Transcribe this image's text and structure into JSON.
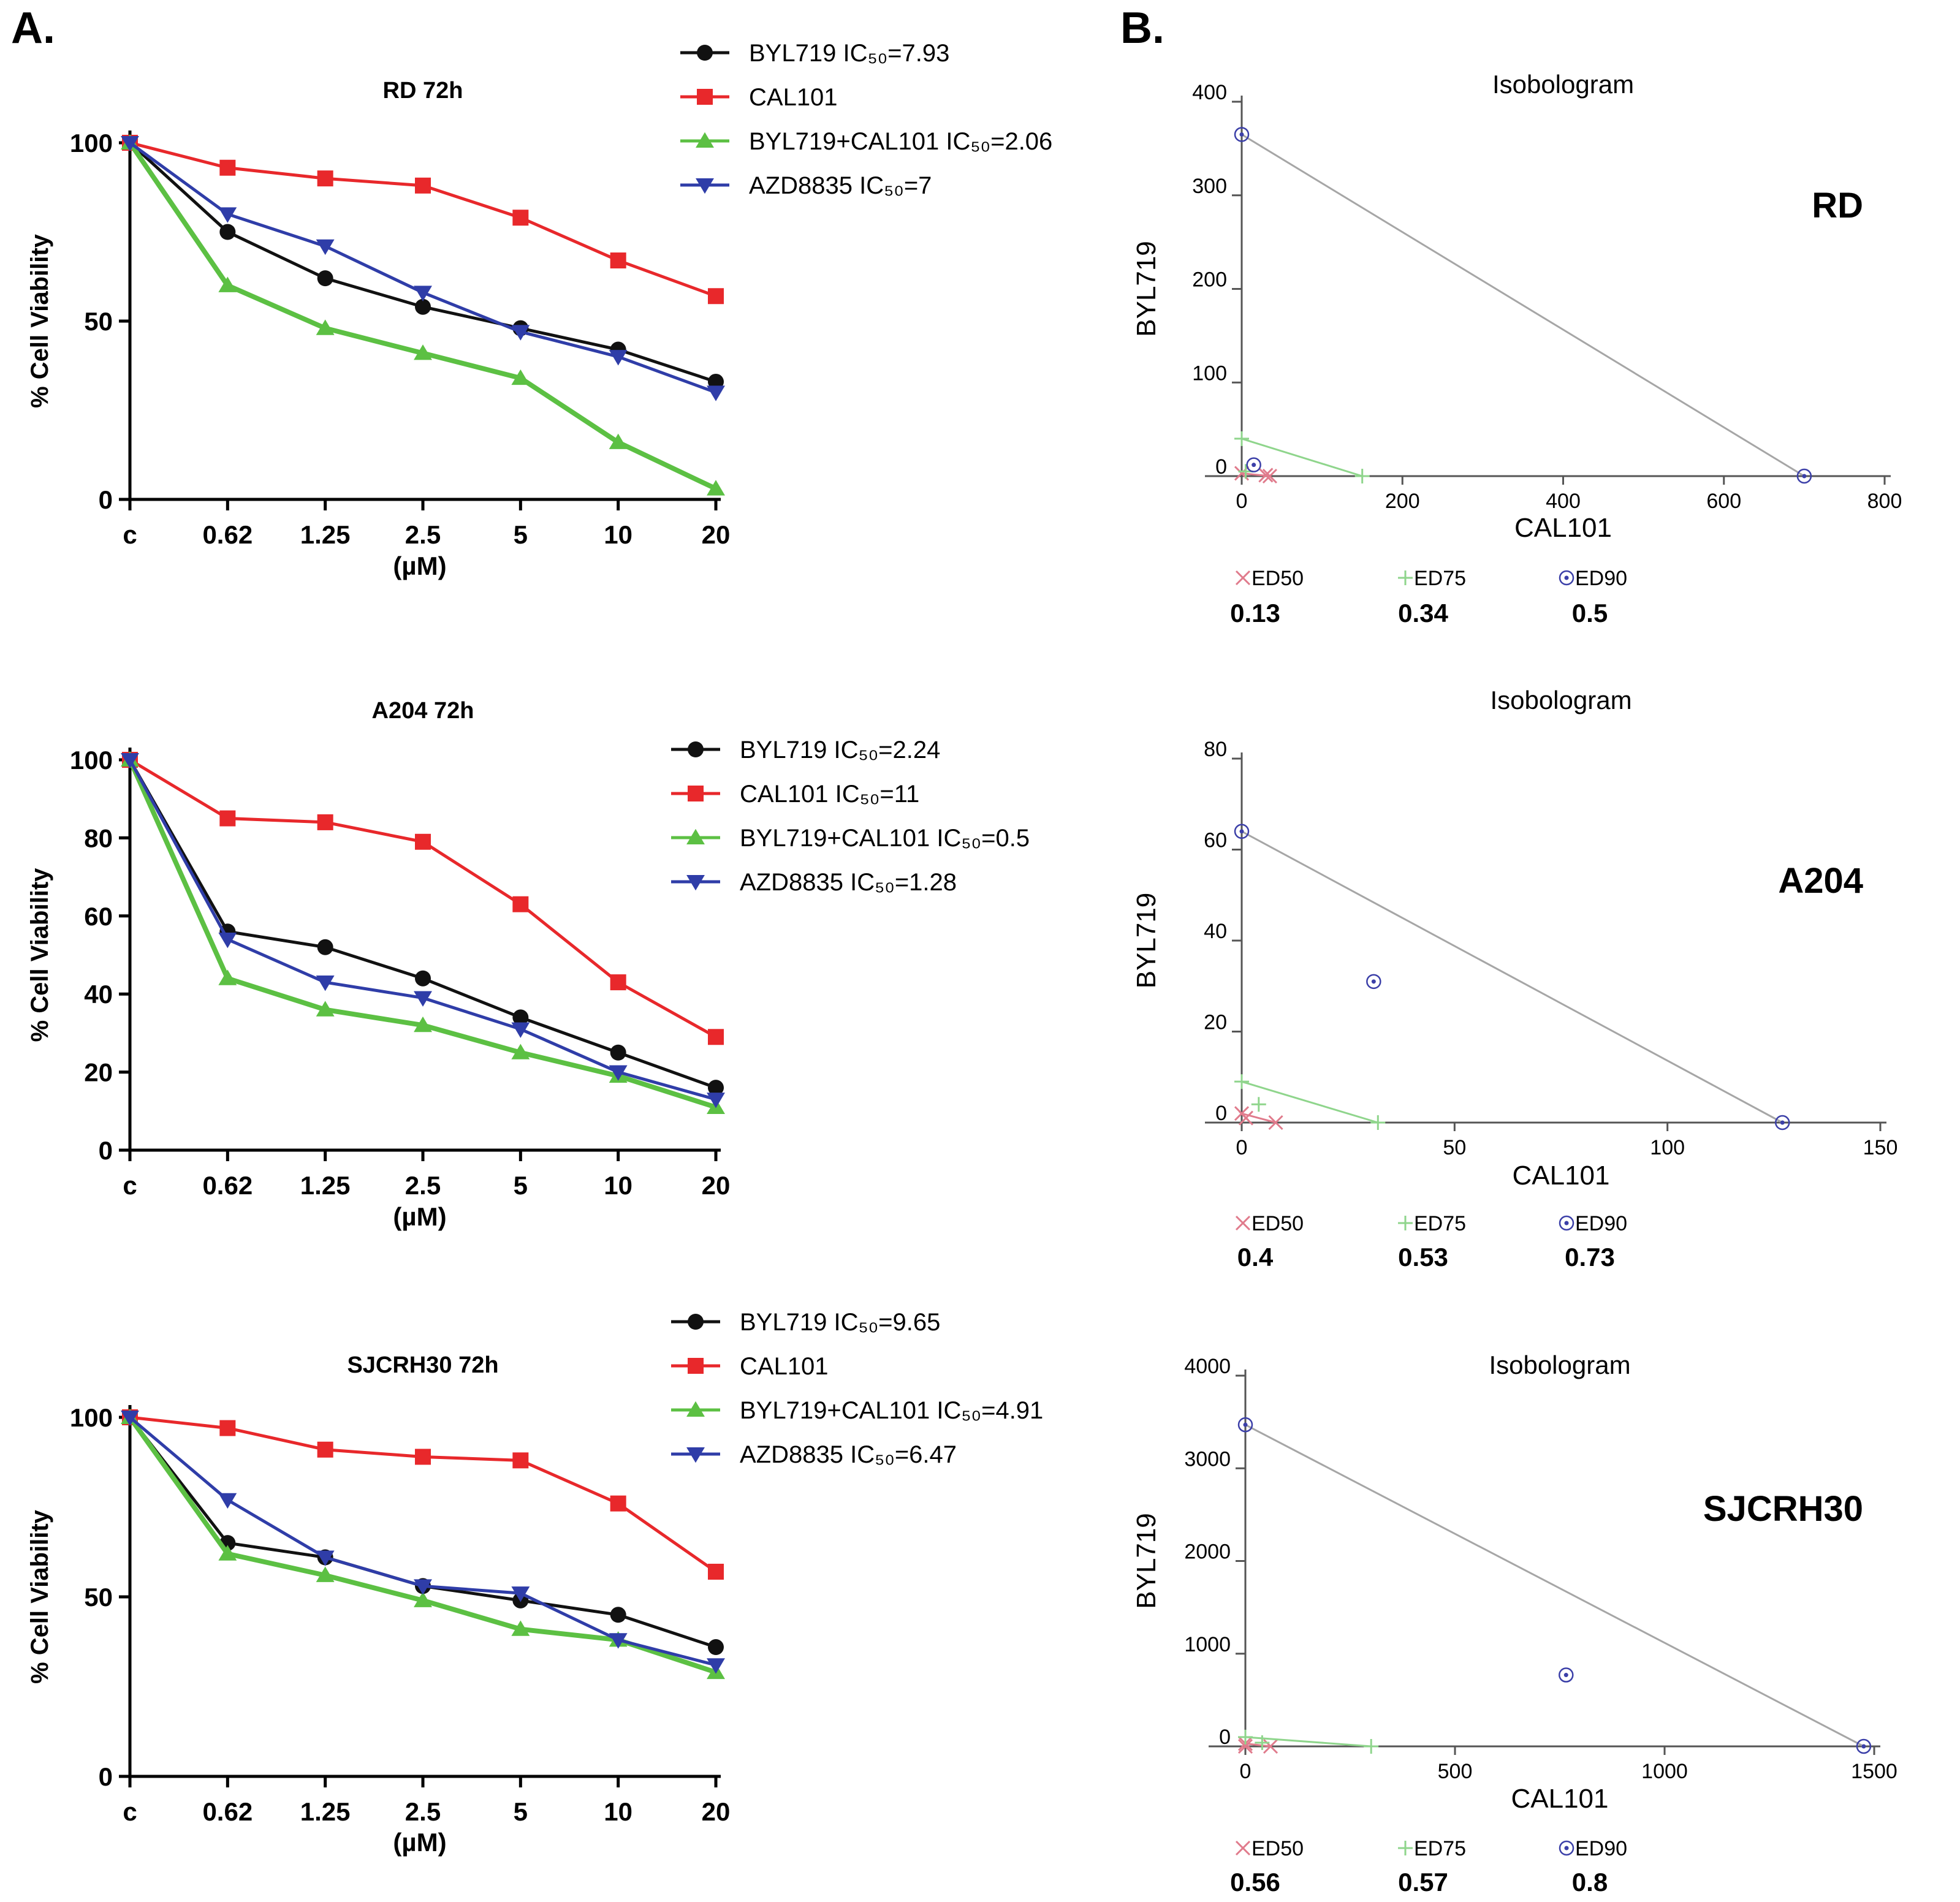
{
  "panel_labels": [
    "A.",
    "B."
  ],
  "colors": {
    "byl": "#111111",
    "cal": "#e8282b",
    "combo": "#5cc043",
    "azd": "#2f3da8",
    "ed50": "#e07b8c",
    "ed75": "#8fd58c",
    "ed90": "#3b3fa8",
    "line": "#a6a6a6"
  },
  "chart_data": [
    {
      "type": "line",
      "panel": "A",
      "title": "RD 72h",
      "xlabel": "(µM)",
      "ylabel": "% Cell Viability",
      "categories": [
        "c",
        "0.62",
        "1.25",
        "2.5",
        "5",
        "10",
        "20"
      ],
      "ylim": [
        0,
        100
      ],
      "yticks": [
        "0",
        "50",
        "100"
      ],
      "legend": [
        "BYL719 IC₅₀=7.93",
        "CAL101",
        "BYL719+CAL101 IC₅₀=2.06",
        "AZD8835 IC₅₀=7"
      ],
      "series": [
        {
          "name": "BYL719",
          "marker": "circle",
          "values": [
            100,
            75,
            62,
            54,
            48,
            42,
            33
          ]
        },
        {
          "name": "CAL101",
          "marker": "square",
          "values": [
            100,
            93,
            90,
            88,
            79,
            67,
            57
          ]
        },
        {
          "name": "BYL719+CAL101",
          "marker": "triangle",
          "values": [
            100,
            60,
            48,
            41,
            34,
            16,
            3
          ]
        },
        {
          "name": "AZD8835",
          "marker": "triangle-down",
          "values": [
            100,
            80,
            71,
            58,
            47,
            40,
            30
          ]
        }
      ]
    },
    {
      "type": "line",
      "panel": "A",
      "title": "A204 72h",
      "xlabel": "(µM)",
      "ylabel": "% Cell Viability",
      "categories": [
        "c",
        "0.62",
        "1.25",
        "2.5",
        "5",
        "10",
        "20"
      ],
      "ylim": [
        0,
        100
      ],
      "yticks": [
        "0",
        "20",
        "40",
        "60",
        "80",
        "100"
      ],
      "legend": [
        "BYL719 IC₅₀=2.24",
        "CAL101 IC₅₀=11",
        "BYL719+CAL101 IC₅₀=0.5",
        "AZD8835 IC₅₀=1.28"
      ],
      "series": [
        {
          "name": "BYL719",
          "marker": "circle",
          "values": [
            100,
            56,
            52,
            44,
            34,
            25,
            16
          ]
        },
        {
          "name": "CAL101",
          "marker": "square",
          "values": [
            100,
            85,
            84,
            79,
            63,
            43,
            29
          ]
        },
        {
          "name": "BYL719+CAL101",
          "marker": "triangle",
          "values": [
            100,
            44,
            36,
            32,
            25,
            19,
            11
          ]
        },
        {
          "name": "AZD8835",
          "marker": "triangle-down",
          "values": [
            100,
            54,
            43,
            39,
            31,
            20,
            13
          ]
        }
      ]
    },
    {
      "type": "line",
      "panel": "A",
      "title": "SJCRH30 72h",
      "xlabel": "(µM)",
      "ylabel": "% Cell Viability",
      "categories": [
        "c",
        "0.62",
        "1.25",
        "2.5",
        "5",
        "10",
        "20"
      ],
      "ylim": [
        0,
        100
      ],
      "yticks": [
        "0",
        "50",
        "100"
      ],
      "legend": [
        "BYL719 IC₅₀=9.65",
        "CAL101",
        "BYL719+CAL101 IC₅₀=4.91",
        "AZD8835 IC₅₀=6.47"
      ],
      "series": [
        {
          "name": "BYL719",
          "marker": "circle",
          "values": [
            100,
            65,
            61,
            53,
            49,
            45,
            36
          ]
        },
        {
          "name": "CAL101",
          "marker": "square",
          "values": [
            100,
            97,
            91,
            89,
            88,
            76,
            57
          ]
        },
        {
          "name": "BYL719+CAL101",
          "marker": "triangle",
          "values": [
            100,
            62,
            56,
            49,
            41,
            38,
            29
          ]
        },
        {
          "name": "AZD8835",
          "marker": "triangle-down",
          "values": [
            100,
            77,
            61,
            53,
            51,
            38,
            31
          ]
        }
      ]
    },
    {
      "type": "scatter",
      "panel": "B",
      "title": "Isobologram",
      "cell_line": "RD",
      "xlabel": "CAL101",
      "ylabel": "BYL719",
      "xlim": [
        0,
        800
      ],
      "ylim": [
        0,
        400
      ],
      "xticks": [
        0,
        200,
        400,
        600,
        800
      ],
      "yticks": [
        0,
        100,
        200,
        300,
        400
      ],
      "isoboles": [
        {
          "name": "ED50",
          "y_intercept": 3,
          "x_intercept": 35,
          "point": [
            30,
            1
          ]
        },
        {
          "name": "ED75",
          "y_intercept": 40,
          "x_intercept": 150,
          "point": [
            5,
            5
          ]
        },
        {
          "name": "ED90",
          "y_intercept": 365,
          "x_intercept": 700,
          "point": [
            15,
            12
          ]
        }
      ],
      "legend": [
        "ED50",
        "ED75",
        "ED90"
      ],
      "ci": [
        "0.13",
        "0.34",
        "0.5"
      ]
    },
    {
      "type": "scatter",
      "panel": "B",
      "title": "Isobologram",
      "cell_line": "A204",
      "xlabel": "CAL101",
      "ylabel": "BYL719",
      "xlim": [
        0,
        150
      ],
      "ylim": [
        0,
        80
      ],
      "xticks": [
        0,
        50,
        100,
        150
      ],
      "yticks": [
        0,
        20,
        40,
        60,
        80
      ],
      "isoboles": [
        {
          "name": "ED50",
          "y_intercept": 2,
          "x_intercept": 8,
          "point": [
            1,
            1
          ]
        },
        {
          "name": "ED75",
          "y_intercept": 9,
          "x_intercept": 32,
          "point": [
            4,
            4
          ]
        },
        {
          "name": "ED90",
          "y_intercept": 64,
          "x_intercept": 127,
          "point": [
            31,
            31
          ]
        }
      ],
      "legend": [
        "ED50",
        "ED75",
        "ED90"
      ],
      "ci": [
        "0.4",
        "0.53",
        "0.73"
      ]
    },
    {
      "type": "scatter",
      "panel": "B",
      "title": "Isobologram",
      "cell_line": "SJCRH30",
      "xlabel": "CAL101",
      "ylabel": "BYL719",
      "xlim": [
        0,
        1500
      ],
      "ylim": [
        0,
        4000
      ],
      "xticks": [
        0,
        500,
        1000,
        1500
      ],
      "yticks": [
        0,
        1000,
        2000,
        3000,
        4000
      ],
      "isoboles": [
        {
          "name": "ED50",
          "y_intercept": 30,
          "x_intercept": 60,
          "point": [
            0,
            0
          ]
        },
        {
          "name": "ED75",
          "y_intercept": 100,
          "x_intercept": 300,
          "point": [
            40,
            40
          ]
        },
        {
          "name": "ED90",
          "y_intercept": 3470,
          "x_intercept": 1475,
          "point": [
            765,
            770
          ]
        }
      ],
      "legend": [
        "ED50",
        "ED75",
        "ED90"
      ],
      "ci": [
        "0.56",
        "0.57",
        "0.8"
      ]
    }
  ]
}
